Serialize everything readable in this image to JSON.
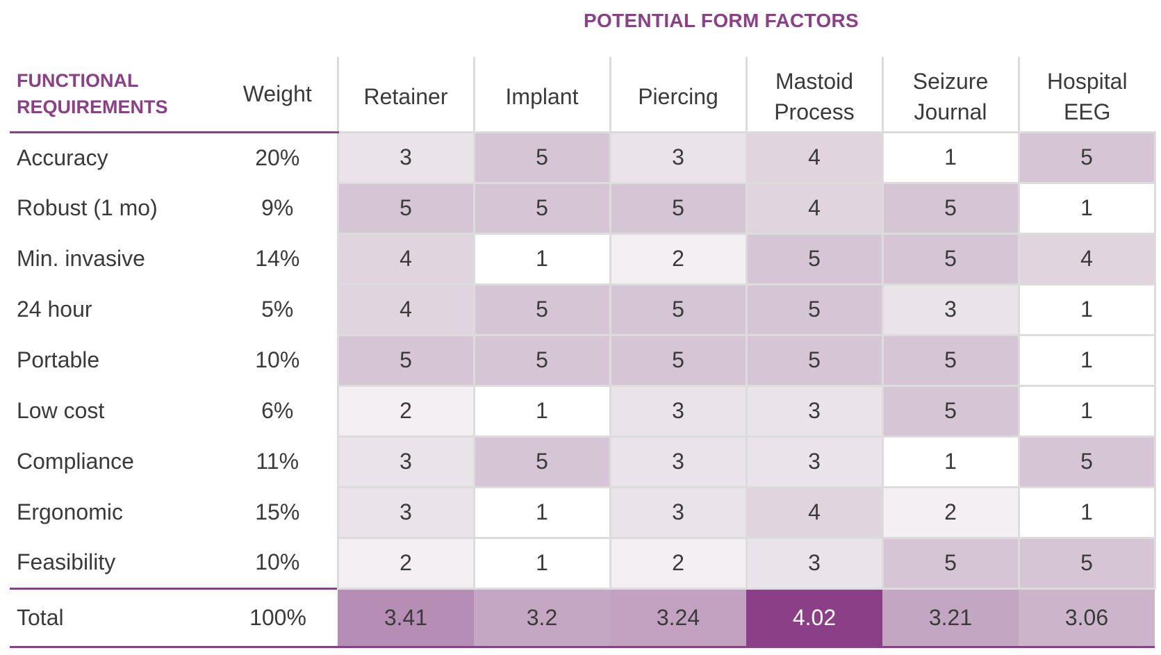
{
  "chart_data": {
    "type": "table",
    "title": "POTENTIAL FORM FACTORS",
    "requirements_header": [
      "FUNCTIONAL",
      "REQUIREMENTS"
    ],
    "weight_header": "Weight",
    "form_factors": [
      [
        "Retainer"
      ],
      [
        "Implant"
      ],
      [
        "Piercing"
      ],
      [
        "Mastoid",
        "Process"
      ],
      [
        "Seizure",
        "Journal"
      ],
      [
        "Hospital",
        "EEG"
      ]
    ],
    "rows": [
      {
        "requirement": "Accuracy",
        "weight": "20%",
        "scores": [
          3,
          5,
          3,
          4,
          1,
          5
        ]
      },
      {
        "requirement": "Robust (1 mo)",
        "weight": "9%",
        "scores": [
          5,
          5,
          5,
          4,
          5,
          1
        ]
      },
      {
        "requirement": "Min. invasive",
        "weight": "14%",
        "scores": [
          4,
          1,
          2,
          5,
          5,
          4
        ]
      },
      {
        "requirement": "24 hour",
        "weight": "5%",
        "scores": [
          4,
          5,
          5,
          5,
          3,
          1
        ]
      },
      {
        "requirement": "Portable",
        "weight": "10%",
        "scores": [
          5,
          5,
          5,
          5,
          5,
          1
        ]
      },
      {
        "requirement": "Low cost",
        "weight": "6%",
        "scores": [
          2,
          1,
          3,
          3,
          5,
          1
        ]
      },
      {
        "requirement": "Compliance",
        "weight": "11%",
        "scores": [
          3,
          5,
          3,
          3,
          1,
          5
        ]
      },
      {
        "requirement": "Ergonomic",
        "weight": "15%",
        "scores": [
          3,
          1,
          3,
          4,
          2,
          1
        ]
      },
      {
        "requirement": "Feasibility",
        "weight": "10%",
        "scores": [
          2,
          1,
          2,
          3,
          5,
          5
        ]
      }
    ],
    "total": {
      "label": "Total",
      "weight": "100%",
      "values": [
        "3.41",
        "3.2",
        "3.24",
        "4.02",
        "3.21",
        "3.06"
      ]
    },
    "score_colors": {
      "1": "#ffffff",
      "2": "#f4eff3",
      "3": "#eae3e9",
      "4": "#e0d4df",
      "5": "#d6c6d5"
    },
    "accent_color": "#8a3f87"
  }
}
